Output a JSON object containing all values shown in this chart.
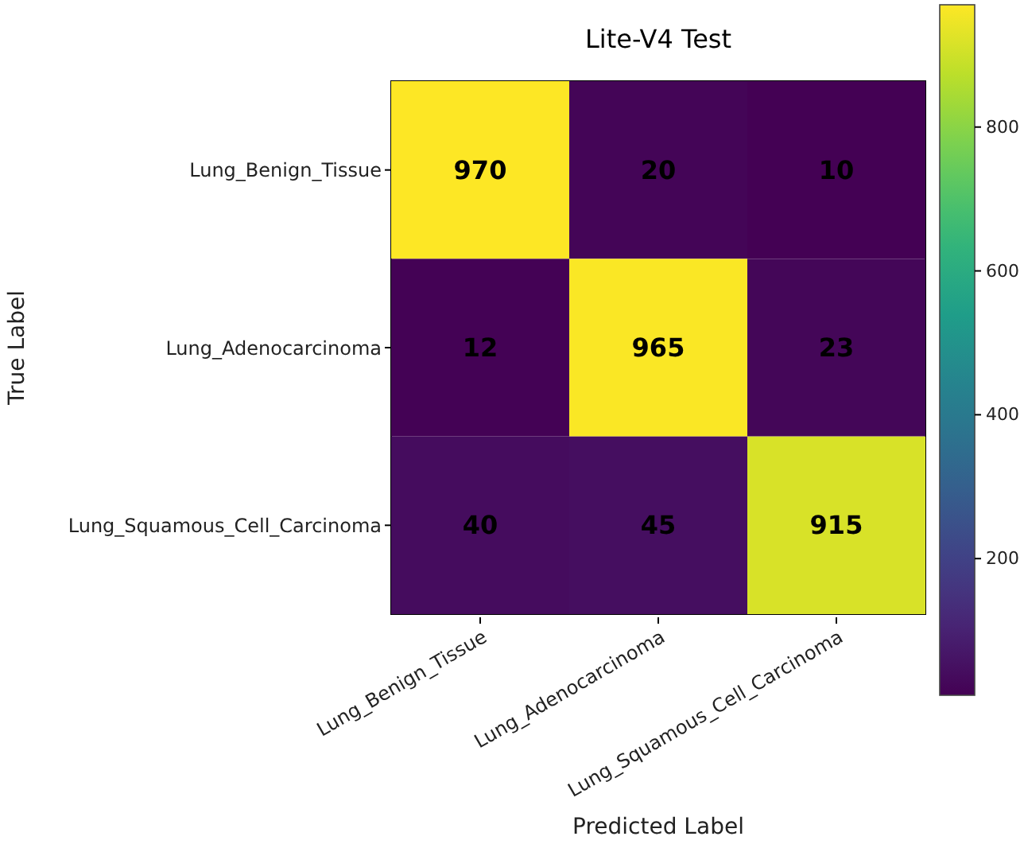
{
  "chart_data": {
    "type": "heatmap",
    "title": "Lite-V4 Test",
    "xlabel": "Predicted Label",
    "ylabel": "True Label",
    "categories": [
      "Lung_Benign_Tissue",
      "Lung_Adenocarcinoma",
      "Lung_Squamous_Cell_Carcinoma"
    ],
    "y_categories": [
      "Lung_Benign_Tissue",
      "Lung_Adenocarcinoma",
      "Lung_Squamous_Cell_Carcinoma"
    ],
    "cells": [
      [
        970,
        20,
        10
      ],
      [
        12,
        965,
        23
      ],
      [
        40,
        45,
        915
      ]
    ],
    "data_labels": true,
    "clim": [
      10,
      970
    ],
    "cticks": [
      200,
      400,
      600,
      800
    ]
  }
}
